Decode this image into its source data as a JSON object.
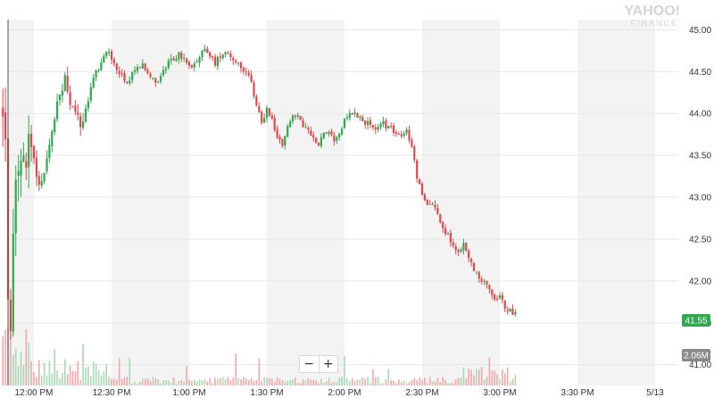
{
  "brand": {
    "line1": "YAHOO!",
    "line2": "FINANCE"
  },
  "zoom": {
    "out_label": "−",
    "in_label": "+"
  },
  "badges": {
    "last_price": {
      "label": "41.55",
      "value": 41.55,
      "color": "#2fa84f"
    },
    "last_volume": {
      "label": "2.06M",
      "color": "#8a8a8a"
    }
  },
  "chart_data": {
    "type": "candlestick",
    "title": "",
    "ylim": [
      40.88,
      45.1
    ],
    "xlim_minutes": [
      0,
      396
    ],
    "y_ticks": [
      {
        "value": 45.0,
        "label": "45.00"
      },
      {
        "value": 44.5,
        "label": "44.50"
      },
      {
        "value": 44.0,
        "label": "44.00"
      },
      {
        "value": 43.5,
        "label": "43.50"
      },
      {
        "value": 43.0,
        "label": "43.00"
      },
      {
        "value": 42.5,
        "label": "42.50"
      },
      {
        "value": 42.0,
        "label": "42.00"
      },
      {
        "value": 41.5,
        "label": "41.50"
      },
      {
        "value": 41.0,
        "label": "41.00"
      }
    ],
    "x_ticks": [
      {
        "minute": 0,
        "label": "12:00 PM"
      },
      {
        "minute": 30,
        "label": "12:30 PM"
      },
      {
        "minute": 60,
        "label": "1:00 PM"
      },
      {
        "minute": 90,
        "label": "1:30 PM"
      },
      {
        "minute": 120,
        "label": "2:00 PM"
      },
      {
        "minute": 150,
        "label": "2:30 PM"
      },
      {
        "minute": 180,
        "label": "3:00 PM"
      },
      {
        "minute": 210,
        "label": "3:30 PM"
      },
      {
        "minute": 240,
        "label": "5/13"
      }
    ],
    "price_keypoints": [
      [
        -12,
        44.05
      ],
      [
        -11,
        43.6
      ],
      [
        -10,
        41.9
      ],
      [
        -9,
        41.3
      ],
      [
        -8,
        42.6
      ],
      [
        -6,
        43.4
      ],
      [
        -4,
        43.3
      ],
      [
        -2,
        43.6
      ],
      [
        0,
        43.45
      ],
      [
        2,
        43.1
      ],
      [
        4,
        43.3
      ],
      [
        6,
        43.6
      ],
      [
        8,
        43.95
      ],
      [
        10,
        44.25
      ],
      [
        12,
        44.4
      ],
      [
        14,
        44.1
      ],
      [
        16,
        44.0
      ],
      [
        18,
        43.85
      ],
      [
        20,
        44.05
      ],
      [
        22,
        44.3
      ],
      [
        24,
        44.5
      ],
      [
        26,
        44.6
      ],
      [
        28,
        44.75
      ],
      [
        30,
        44.65
      ],
      [
        32,
        44.55
      ],
      [
        34,
        44.45
      ],
      [
        36,
        44.35
      ],
      [
        38,
        44.5
      ],
      [
        40,
        44.55
      ],
      [
        42,
        44.6
      ],
      [
        44,
        44.5
      ],
      [
        46,
        44.4
      ],
      [
        48,
        44.4
      ],
      [
        50,
        44.5
      ],
      [
        52,
        44.6
      ],
      [
        54,
        44.65
      ],
      [
        56,
        44.7
      ],
      [
        58,
        44.65
      ],
      [
        60,
        44.55
      ],
      [
        62,
        44.6
      ],
      [
        64,
        44.7
      ],
      [
        66,
        44.75
      ],
      [
        68,
        44.7
      ],
      [
        70,
        44.6
      ],
      [
        72,
        44.7
      ],
      [
        74,
        44.75
      ],
      [
        76,
        44.7
      ],
      [
        78,
        44.6
      ],
      [
        80,
        44.55
      ],
      [
        82,
        44.5
      ],
      [
        84,
        44.35
      ],
      [
        86,
        44.1
      ],
      [
        88,
        43.9
      ],
      [
        90,
        44.05
      ],
      [
        92,
        43.95
      ],
      [
        94,
        43.7
      ],
      [
        96,
        43.65
      ],
      [
        98,
        43.85
      ],
      [
        100,
        44.0
      ],
      [
        102,
        43.95
      ],
      [
        104,
        43.85
      ],
      [
        106,
        43.8
      ],
      [
        108,
        43.7
      ],
      [
        110,
        43.65
      ],
      [
        112,
        43.75
      ],
      [
        114,
        43.8
      ],
      [
        116,
        43.7
      ],
      [
        118,
        43.75
      ],
      [
        120,
        43.95
      ],
      [
        122,
        44.0
      ],
      [
        124,
        44.0
      ],
      [
        126,
        43.95
      ],
      [
        128,
        43.9
      ],
      [
        130,
        43.85
      ],
      [
        132,
        43.8
      ],
      [
        134,
        43.9
      ],
      [
        136,
        43.85
      ],
      [
        138,
        43.85
      ],
      [
        140,
        43.75
      ],
      [
        142,
        43.7
      ],
      [
        144,
        43.8
      ],
      [
        146,
        43.6
      ],
      [
        148,
        43.25
      ],
      [
        150,
        43.0
      ],
      [
        152,
        42.9
      ],
      [
        154,
        42.95
      ],
      [
        156,
        42.8
      ],
      [
        158,
        42.6
      ],
      [
        160,
        42.55
      ],
      [
        162,
        42.4
      ],
      [
        164,
        42.35
      ],
      [
        166,
        42.45
      ],
      [
        168,
        42.3
      ],
      [
        170,
        42.15
      ],
      [
        172,
        42.05
      ],
      [
        174,
        42.0
      ],
      [
        176,
        41.9
      ],
      [
        178,
        41.75
      ],
      [
        180,
        41.8
      ],
      [
        182,
        41.7
      ],
      [
        184,
        41.65
      ],
      [
        186,
        41.6
      ]
    ],
    "volume_scale_label": "2.06M"
  }
}
